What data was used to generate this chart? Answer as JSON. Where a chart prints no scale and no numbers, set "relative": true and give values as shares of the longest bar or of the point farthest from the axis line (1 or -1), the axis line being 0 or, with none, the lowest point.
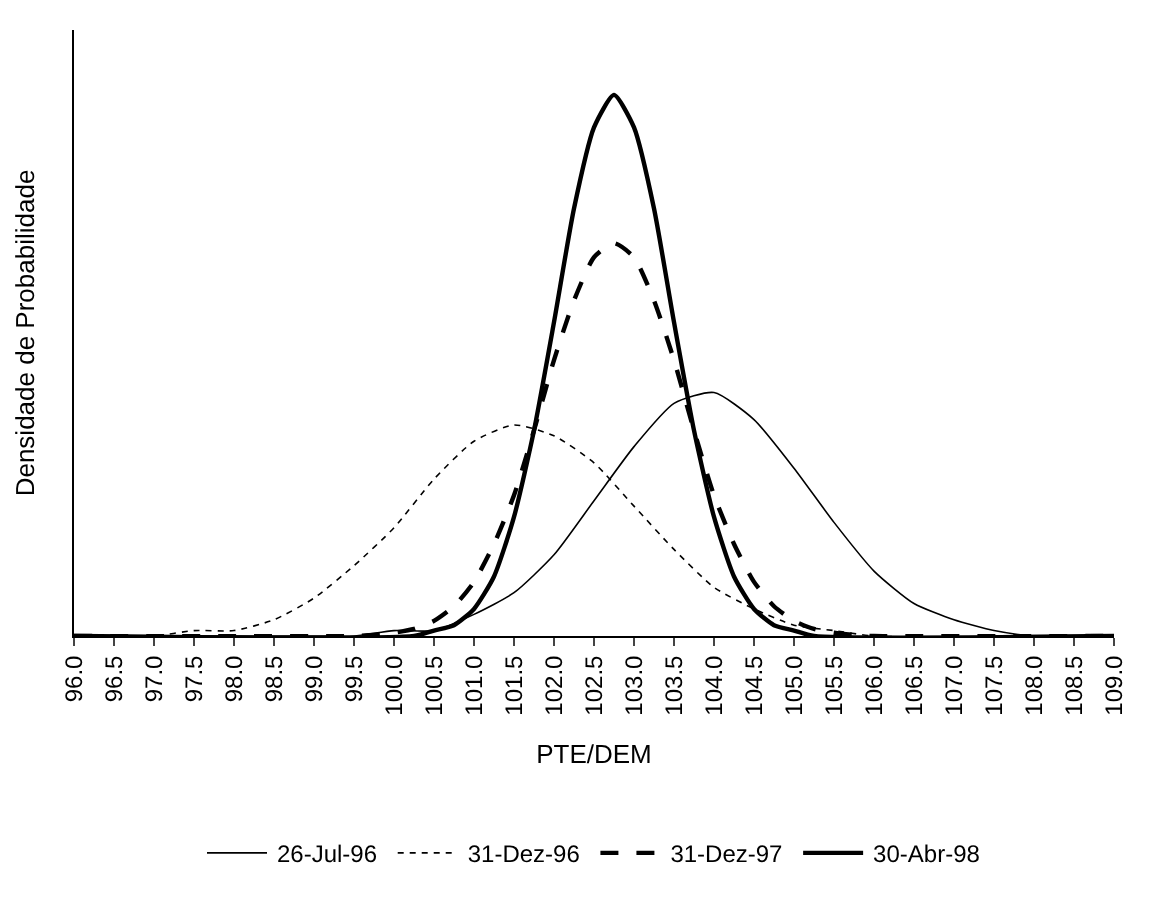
{
  "chart_data": {
    "type": "line",
    "relative": true,
    "xlabel": "PTE/DEM",
    "ylabel": "Densidade de Probabilidade",
    "xlim": [
      96,
      109
    ],
    "xticks": [
      {
        "value": 96,
        "label": "96.0"
      },
      {
        "value": 96.5,
        "label": "96.5"
      },
      {
        "value": 97,
        "label": "97.0"
      },
      {
        "value": 97.5,
        "label": "97.5"
      },
      {
        "value": 98,
        "label": "98.0"
      },
      {
        "value": 98.5,
        "label": "98.5"
      },
      {
        "value": 99,
        "label": "99.0"
      },
      {
        "value": 99.5,
        "label": "99.5"
      },
      {
        "value": 100,
        "label": "100.0"
      },
      {
        "value": 100.5,
        "label": "100.5"
      },
      {
        "value": 101,
        "label": "101.0"
      },
      {
        "value": 101.5,
        "label": "101.5"
      },
      {
        "value": 102,
        "label": "102.0"
      },
      {
        "value": 102.5,
        "label": "102.5"
      },
      {
        "value": 103,
        "label": "103.0"
      },
      {
        "value": 103.5,
        "label": "103.5"
      },
      {
        "value": 104,
        "label": "104.0"
      },
      {
        "value": 104.5,
        "label": "104.5"
      },
      {
        "value": 105,
        "label": "105.0"
      },
      {
        "value": 105.5,
        "label": "105.5"
      },
      {
        "value": 106,
        "label": "106.0"
      },
      {
        "value": 106.5,
        "label": "106.5"
      },
      {
        "value": 107,
        "label": "107.0"
      },
      {
        "value": 107.5,
        "label": "107.5"
      },
      {
        "value": 108,
        "label": "108.0"
      },
      {
        "value": 108.5,
        "label": "108.5"
      },
      {
        "value": 109,
        "label": "109.0"
      }
    ],
    "legend": "bottom",
    "marker": "none",
    "series": [
      {
        "name": "26-Jul-96",
        "color": "#000000",
        "line_style": "solid",
        "x": [
          96,
          99,
          99.5,
          100,
          100.5,
          101,
          101.5,
          102,
          102.5,
          103,
          103.5,
          104,
          104.5,
          105,
          105.5,
          106,
          106.5,
          107,
          107.5,
          108,
          109
        ],
        "values": [
          0,
          0,
          0,
          0.01,
          0.01,
          0.04,
          0.08,
          0.15,
          0.25,
          0.35,
          0.43,
          0.45,
          0.4,
          0.31,
          0.21,
          0.12,
          0.06,
          0.03,
          0.01,
          0,
          0
        ]
      },
      {
        "name": "31-Dez-96",
        "color": "#000000",
        "line_style": "dotted",
        "x": [
          96,
          97,
          97.5,
          98,
          98.5,
          99,
          99.5,
          100,
          100.5,
          101,
          101.5,
          102,
          102.5,
          103,
          103.5,
          104,
          104.5,
          105,
          105.5,
          106,
          109
        ],
        "values": [
          0,
          0,
          0.01,
          0.01,
          0.03,
          0.07,
          0.13,
          0.2,
          0.29,
          0.36,
          0.39,
          0.37,
          0.32,
          0.24,
          0.16,
          0.09,
          0.05,
          0.02,
          0.01,
          0,
          0
        ]
      },
      {
        "name": "31-Dez-97",
        "color": "#000000",
        "line_style": "dashed",
        "x": [
          96,
          99.5,
          99.75,
          100,
          100.25,
          100.5,
          100.75,
          101,
          101.25,
          101.5,
          101.75,
          102,
          102.25,
          102.5,
          102.75,
          103,
          103.25,
          103.5,
          103.75,
          104,
          104.25,
          104.5,
          104.75,
          105,
          105.25,
          105.5,
          105.75,
          106,
          109
        ],
        "values": [
          0,
          0,
          0.002,
          0.006,
          0.013,
          0.028,
          0.055,
          0.1,
          0.17,
          0.26,
          0.38,
          0.51,
          0.62,
          0.7,
          0.726,
          0.7,
          0.62,
          0.51,
          0.38,
          0.26,
          0.17,
          0.1,
          0.055,
          0.028,
          0.013,
          0.006,
          0.002,
          0,
          0
        ]
      },
      {
        "name": "30-Abr-98",
        "color": "#000000",
        "line_style": "solid",
        "x": [
          96,
          100.25,
          100.5,
          100.75,
          101,
          101.25,
          101.5,
          101.75,
          102,
          102.25,
          102.5,
          102.75,
          103,
          103.25,
          103.5,
          103.75,
          104,
          104.25,
          104.5,
          104.75,
          105,
          105.25,
          109
        ],
        "values": [
          0,
          0,
          0.01,
          0.02,
          0.05,
          0.11,
          0.22,
          0.38,
          0.58,
          0.79,
          0.94,
          1,
          0.94,
          0.79,
          0.58,
          0.38,
          0.22,
          0.11,
          0.05,
          0.02,
          0.01,
          0,
          0
        ]
      }
    ]
  }
}
